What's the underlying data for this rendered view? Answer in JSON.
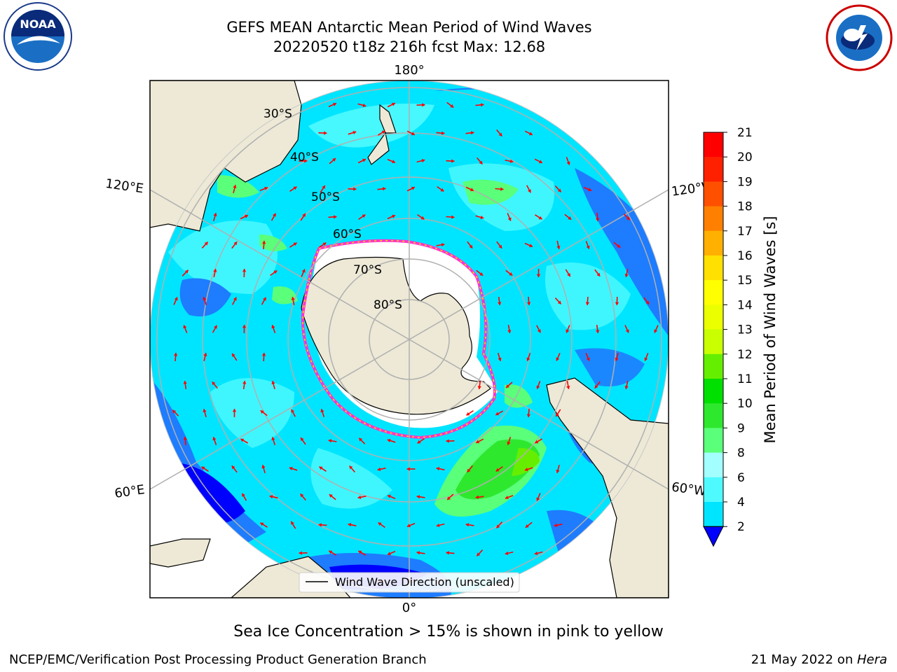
{
  "header": {
    "title_line1": "GEFS MEAN Antarctic Mean Period of Wind Waves",
    "title_line2": "20220520 t18z 216h fcst   Max: 12.68"
  },
  "logos": {
    "left": {
      "icon": "noaa-logo",
      "text": "NOAA"
    },
    "right": {
      "icon": "national-weather-service-logo"
    }
  },
  "map": {
    "projection": "south-polar-stereographic",
    "longitude_labels": {
      "top": "180°",
      "bottom": "0°",
      "upper_left": "120°E",
      "upper_right": "120°W",
      "lower_left": "60°E",
      "lower_right": "60°W"
    },
    "latitude_labels": [
      "30°S",
      "40°S",
      "50°S",
      "60°S",
      "70°S",
      "80°S"
    ],
    "legend_label": "Wind Wave Direction (unscaled)",
    "colors": {
      "land": "#ede9d6",
      "ice_edge": "#ff33cc",
      "arrows": "#ff0000",
      "gridlines": "#b0b0b0"
    }
  },
  "colorbar": {
    "label": "Mean Period of Wind Waves [s]",
    "ticks": [
      "2",
      "4",
      "6",
      "8",
      "9",
      "10",
      "11",
      "12",
      "13",
      "14",
      "15",
      "16",
      "17",
      "18",
      "19",
      "20",
      "21"
    ],
    "colors": [
      "#0000ff",
      "#1e7cff",
      "#00e5ff",
      "#4ffaff",
      "#a3ffff",
      "#5aff7a",
      "#2ee82e",
      "#00e000",
      "#66ee00",
      "#c9ff00",
      "#ecff00",
      "#ffff00",
      "#ffe000",
      "#ffb000",
      "#ff8000",
      "#ff5000",
      "#ff2000",
      "#ff0000"
    ],
    "extend": "min"
  },
  "footer": {
    "note": "Sea Ice Concentration > 15% is shown in pink to yellow",
    "credit": "NCEP/EMC/Verification Post Processing Product Generation Branch",
    "date": "21 May 2022 on ",
    "host": "Hera"
  }
}
